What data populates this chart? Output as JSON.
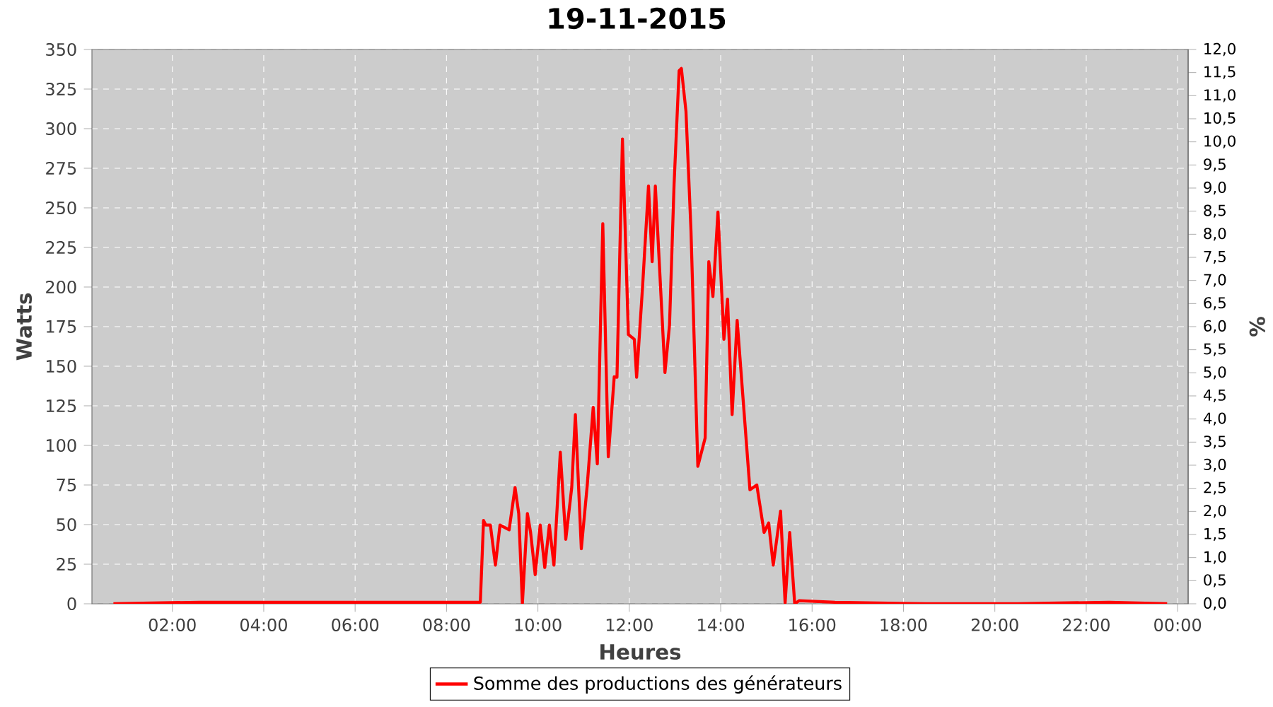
{
  "chart_data": {
    "type": "line",
    "title": "19-11-2015",
    "xlabel": "Heures",
    "ylabel": "Watts",
    "y2label": "%",
    "x": [
      0.71,
      2.6,
      4.5,
      6.4,
      8.3,
      8.74,
      8.81,
      8.86,
      8.96,
      9.07,
      9.17,
      9.37,
      9.5,
      9.58,
      9.66,
      9.77,
      9.84,
      9.94,
      10.05,
      10.15,
      10.25,
      10.35,
      10.49,
      10.61,
      10.74,
      10.82,
      10.95,
      11.08,
      11.21,
      11.3,
      11.42,
      11.54,
      11.67,
      11.73,
      11.85,
      11.98,
      12.11,
      12.16,
      12.29,
      12.42,
      12.5,
      12.57,
      12.78,
      12.88,
      12.98,
      13.09,
      13.14,
      13.24,
      13.35,
      13.5,
      13.66,
      13.74,
      13.83,
      13.94,
      14.07,
      14.15,
      14.25,
      14.36,
      14.64,
      14.79,
      14.95,
      15.05,
      15.15,
      15.31,
      15.41,
      15.51,
      15.62,
      15.72,
      16.5,
      18.5,
      20.5,
      22.5,
      23.77
    ],
    "series": [
      {
        "name": "Somme des productions des  générateurs",
        "color": "#ff0000",
        "values": [
          0,
          1,
          1,
          1,
          1,
          1,
          52.6,
          49.7,
          49.7,
          24.4,
          49.7,
          46.7,
          73.4,
          57,
          0,
          57,
          45,
          18.4,
          49.7,
          22.9,
          49.7,
          24.4,
          95.7,
          40.7,
          73.4,
          119.5,
          34.8,
          75,
          124,
          88.3,
          240,
          92.8,
          143.3,
          143,
          293.5,
          170,
          167,
          143,
          200,
          263.8,
          216,
          263.8,
          146,
          176,
          265,
          336.6,
          338,
          311,
          235.5,
          86.8,
          104.7,
          216,
          194,
          247.4,
          167,
          192.4,
          119.5,
          179,
          72,
          75,
          45,
          51,
          24.4,
          58.5,
          0.5,
          45,
          0,
          2,
          1,
          0,
          0,
          1,
          0
        ]
      }
    ],
    "xlim": [
      0.24,
      24.23
    ],
    "xticks": [
      {
        "value": 2,
        "label": "02:00"
      },
      {
        "value": 4,
        "label": "04:00"
      },
      {
        "value": 6,
        "label": "06:00"
      },
      {
        "value": 8,
        "label": "08:00"
      },
      {
        "value": 10,
        "label": "10:00"
      },
      {
        "value": 12,
        "label": "12:00"
      },
      {
        "value": 14,
        "label": "14:00"
      },
      {
        "value": 16,
        "label": "16:00"
      },
      {
        "value": 18,
        "label": "18:00"
      },
      {
        "value": 20,
        "label": "20:00"
      },
      {
        "value": 22,
        "label": "22:00"
      },
      {
        "value": 24,
        "label": "00:00"
      }
    ],
    "ylim": [
      0,
      350
    ],
    "yticks": [
      0,
      25,
      50,
      75,
      100,
      125,
      150,
      175,
      200,
      225,
      250,
      275,
      300,
      325,
      350
    ],
    "y2lim": [
      0,
      12
    ],
    "y2ticks": [
      {
        "value": 0,
        "label": "0,0"
      },
      {
        "value": 0.5,
        "label": "0,5"
      },
      {
        "value": 1,
        "label": "1,0"
      },
      {
        "value": 1.5,
        "label": "1,5"
      },
      {
        "value": 2,
        "label": "2,0"
      },
      {
        "value": 2.5,
        "label": "2,5"
      },
      {
        "value": 3,
        "label": "3,0"
      },
      {
        "value": 3.5,
        "label": "3,5"
      },
      {
        "value": 4,
        "label": "4,0"
      },
      {
        "value": 4.5,
        "label": "4,5"
      },
      {
        "value": 5,
        "label": "5,0"
      },
      {
        "value": 5.5,
        "label": "5,5"
      },
      {
        "value": 6,
        "label": "6,0"
      },
      {
        "value": 6.5,
        "label": "6,5"
      },
      {
        "value": 7,
        "label": "7,0"
      },
      {
        "value": 7.5,
        "label": "7,5"
      },
      {
        "value": 8,
        "label": "8,0"
      },
      {
        "value": 8.5,
        "label": "8,5"
      },
      {
        "value": 9,
        "label": "9,0"
      },
      {
        "value": 9.5,
        "label": "9,5"
      },
      {
        "value": 10,
        "label": "10,0"
      },
      {
        "value": 10.5,
        "label": "10,5"
      },
      {
        "value": 11,
        "label": "11,0"
      },
      {
        "value": 11.5,
        "label": "11,5"
      },
      {
        "value": 12,
        "label": "12,0"
      }
    ],
    "grid": true,
    "legend": "bottom",
    "line_style": "solid"
  }
}
